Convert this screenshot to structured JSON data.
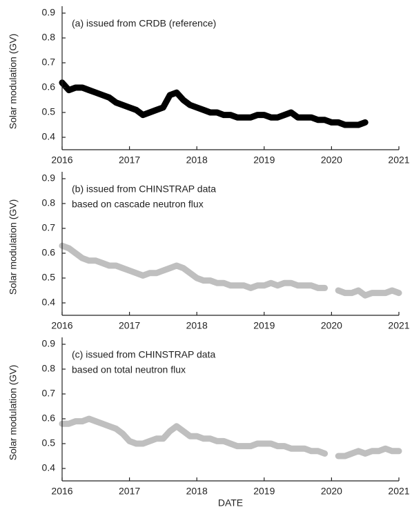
{
  "chart_data": [
    {
      "type": "line",
      "title": "(a) issued from CRDB (reference)",
      "ylabel": "Solar modulation (GV)",
      "color": "#000000",
      "xlim": [
        2016,
        2021
      ],
      "xticks": [
        2016,
        2017,
        2018,
        2019,
        2020,
        2021
      ],
      "ylim": [
        0.35,
        0.9
      ],
      "yticks": [
        0.4,
        0.5,
        0.6,
        0.7,
        0.8,
        0.9
      ],
      "x": [
        2016.0,
        2016.1,
        2016.2,
        2016.3,
        2016.4,
        2016.5,
        2016.6,
        2016.7,
        2016.8,
        2016.9,
        2017.0,
        2017.1,
        2017.2,
        2017.3,
        2017.4,
        2017.5,
        2017.6,
        2017.7,
        2017.8,
        2017.9,
        2018.0,
        2018.1,
        2018.2,
        2018.3,
        2018.4,
        2018.5,
        2018.6,
        2018.7,
        2018.8,
        2018.9,
        2019.0,
        2019.1,
        2019.2,
        2019.3,
        2019.4,
        2019.5,
        2019.6,
        2019.7,
        2019.8,
        2019.9,
        2020.0,
        2020.1,
        2020.2,
        2020.3,
        2020.4,
        2020.5
      ],
      "values": [
        0.62,
        0.59,
        0.6,
        0.6,
        0.59,
        0.58,
        0.57,
        0.56,
        0.54,
        0.53,
        0.52,
        0.51,
        0.49,
        0.5,
        0.51,
        0.52,
        0.57,
        0.58,
        0.55,
        0.53,
        0.52,
        0.51,
        0.5,
        0.5,
        0.49,
        0.49,
        0.48,
        0.48,
        0.48,
        0.49,
        0.49,
        0.48,
        0.48,
        0.49,
        0.5,
        0.48,
        0.48,
        0.48,
        0.47,
        0.47,
        0.46,
        0.46,
        0.45,
        0.45,
        0.45,
        0.46
      ]
    },
    {
      "type": "line",
      "title": "(b) issued from CHINSTRAP data",
      "subtitle": "based on cascade neutron flux",
      "ylabel": "Solar modulation (GV)",
      "color": "#bfbfbf",
      "xlim": [
        2016,
        2021
      ],
      "xticks": [
        2016,
        2017,
        2018,
        2019,
        2020,
        2021
      ],
      "ylim": [
        0.35,
        0.9
      ],
      "yticks": [
        0.4,
        0.5,
        0.6,
        0.7,
        0.8,
        0.9
      ],
      "x": [
        2016.0,
        2016.1,
        2016.2,
        2016.3,
        2016.4,
        2016.5,
        2016.6,
        2016.7,
        2016.8,
        2016.9,
        2017.0,
        2017.1,
        2017.2,
        2017.3,
        2017.4,
        2017.5,
        2017.6,
        2017.7,
        2017.8,
        2017.9,
        2018.0,
        2018.1,
        2018.2,
        2018.3,
        2018.4,
        2018.5,
        2018.6,
        2018.7,
        2018.8,
        2018.9,
        2019.0,
        2019.1,
        2019.2,
        2019.3,
        2019.4,
        2019.5,
        2019.6,
        2019.7,
        2019.8,
        2019.9,
        2020.0,
        2020.1,
        2020.2,
        2020.3,
        2020.4,
        2020.5,
        2020.6,
        2020.7,
        2020.8,
        2020.9,
        2021.0
      ],
      "values": [
        0.63,
        0.62,
        0.6,
        0.58,
        0.57,
        0.57,
        0.56,
        0.55,
        0.55,
        0.54,
        0.53,
        0.52,
        0.51,
        0.52,
        0.52,
        0.53,
        0.54,
        0.55,
        0.54,
        0.52,
        0.5,
        0.49,
        0.49,
        0.48,
        0.48,
        0.47,
        0.47,
        0.47,
        0.46,
        0.47,
        0.47,
        0.48,
        0.47,
        0.48,
        0.48,
        0.47,
        0.47,
        0.47,
        0.46,
        0.46,
        null,
        0.45,
        0.44,
        0.44,
        0.45,
        0.43,
        0.44,
        0.44,
        0.44,
        0.45,
        0.44
      ]
    },
    {
      "type": "line",
      "title": "(c) issued from CHINSTRAP data",
      "subtitle": "based on total neutron flux",
      "ylabel": "Solar modulation (GV)",
      "xlabel": "DATE",
      "color": "#bfbfbf",
      "xlim": [
        2016,
        2021
      ],
      "xticks": [
        2016,
        2017,
        2018,
        2019,
        2020,
        2021
      ],
      "ylim": [
        0.35,
        0.9
      ],
      "yticks": [
        0.4,
        0.5,
        0.6,
        0.7,
        0.8,
        0.9
      ],
      "x": [
        2016.0,
        2016.1,
        2016.2,
        2016.3,
        2016.4,
        2016.5,
        2016.6,
        2016.7,
        2016.8,
        2016.9,
        2017.0,
        2017.1,
        2017.2,
        2017.3,
        2017.4,
        2017.5,
        2017.6,
        2017.7,
        2017.8,
        2017.9,
        2018.0,
        2018.1,
        2018.2,
        2018.3,
        2018.4,
        2018.5,
        2018.6,
        2018.7,
        2018.8,
        2018.9,
        2019.0,
        2019.1,
        2019.2,
        2019.3,
        2019.4,
        2019.5,
        2019.6,
        2019.7,
        2019.8,
        2019.9,
        2020.0,
        2020.1,
        2020.2,
        2020.3,
        2020.4,
        2020.5,
        2020.6,
        2020.7,
        2020.8,
        2020.9,
        2021.0
      ],
      "values": [
        0.58,
        0.58,
        0.59,
        0.59,
        0.6,
        0.59,
        0.58,
        0.57,
        0.56,
        0.54,
        0.51,
        0.5,
        0.5,
        0.51,
        0.52,
        0.52,
        0.55,
        0.57,
        0.55,
        0.53,
        0.53,
        0.52,
        0.52,
        0.51,
        0.51,
        0.5,
        0.49,
        0.49,
        0.49,
        0.5,
        0.5,
        0.5,
        0.49,
        0.49,
        0.48,
        0.48,
        0.48,
        0.47,
        0.47,
        0.46,
        null,
        0.45,
        0.45,
        0.46,
        0.47,
        0.46,
        0.47,
        0.47,
        0.48,
        0.47,
        0.47
      ]
    }
  ]
}
